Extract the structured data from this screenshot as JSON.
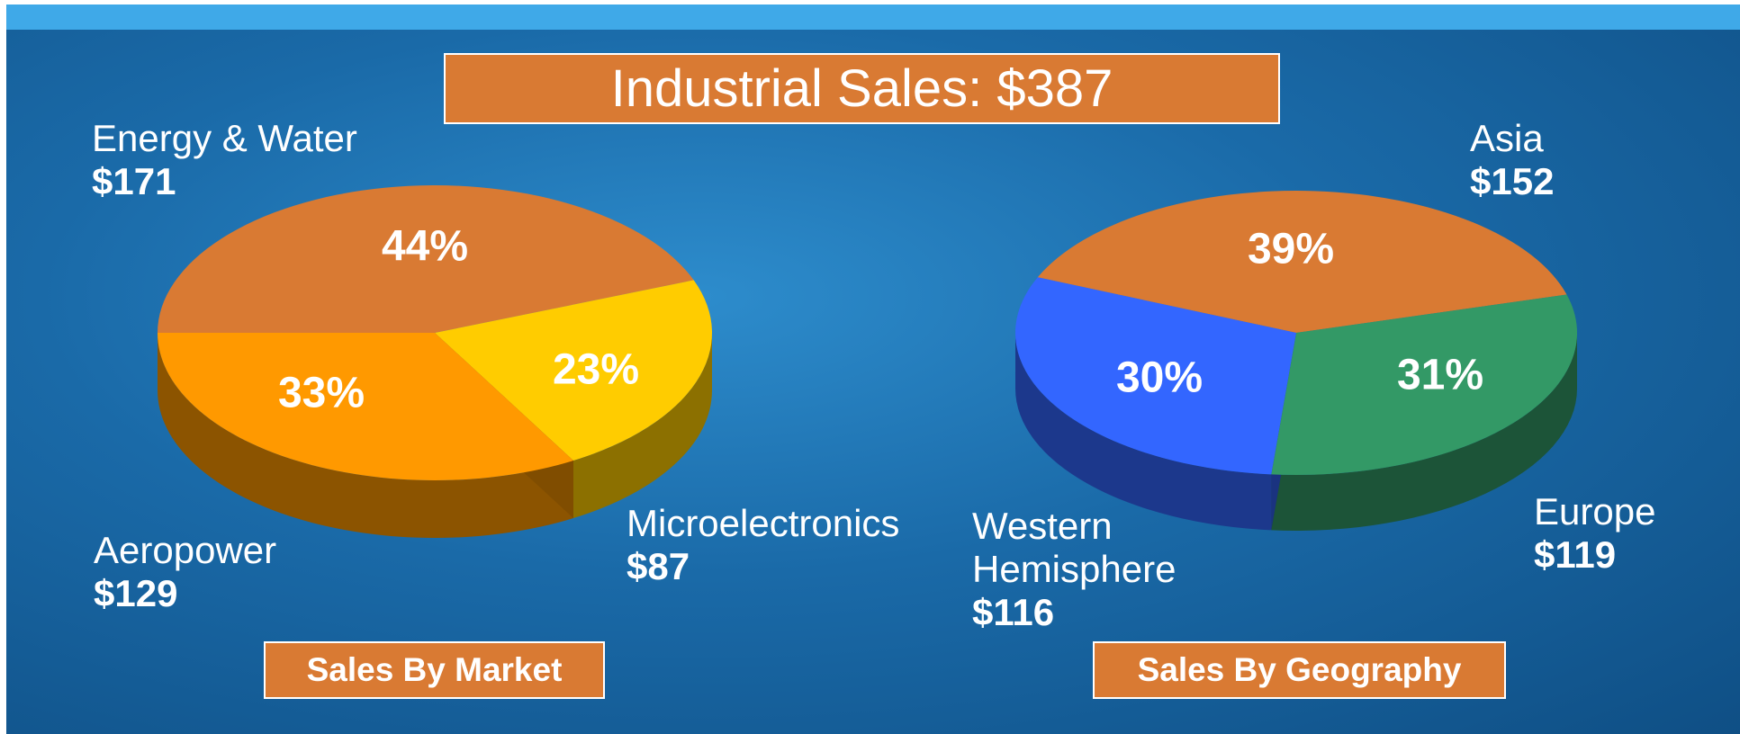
{
  "title": "Industrial Sales: $387",
  "chart_data": [
    {
      "type": "pie",
      "title": "Sales By Market",
      "categories": [
        "Energy & Water",
        "Microelectronics",
        "Aeropower"
      ],
      "values": [
        171,
        87,
        129
      ],
      "value_labels": [
        "$171",
        "$87",
        "$129"
      ],
      "percent_labels": [
        "44%",
        "23%",
        "33%"
      ],
      "colors": [
        "#d97a33",
        "#ffcc00",
        "#ff9900"
      ]
    },
    {
      "type": "pie",
      "title": "Sales By Geography",
      "categories": [
        "Asia",
        "Europe",
        "Western Hemisphere"
      ],
      "values": [
        152,
        119,
        116
      ],
      "value_labels": [
        "$152",
        "$119",
        "$116"
      ],
      "percent_labels": [
        "39%",
        "31%",
        "30%"
      ],
      "colors": [
        "#d97a33",
        "#339966",
        "#3366ff"
      ]
    }
  ]
}
